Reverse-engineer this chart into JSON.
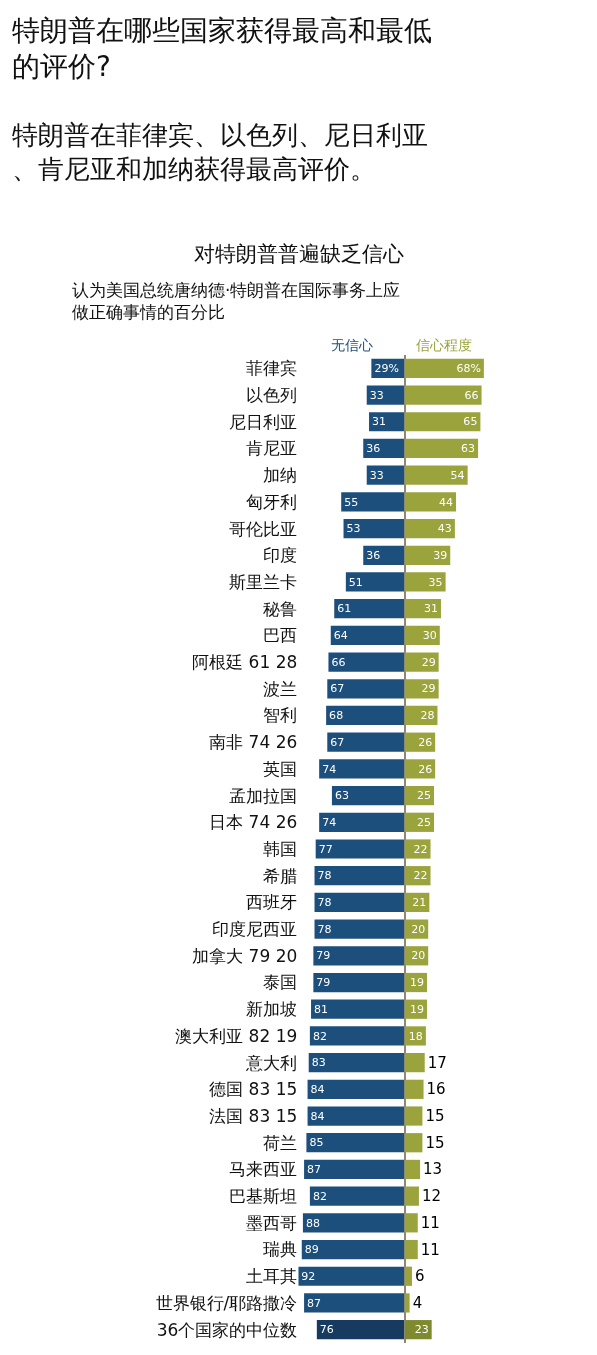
{
  "chart_data": [
    {
      "type": "bar",
      "orientation": "horizontal",
      "title": "特朗普在哪些国家获得最高和最低的评价?",
      "subtitle": "特朗普在菲律宾、以色列、尼日利亚、肯尼亚和加纳获得最高评价。",
      "annotations": [
        "对特朗普普遍缺乏信心",
        "认为美国总统唐纳德·特朗普在国际事务上应做正确事情的百分比"
      ],
      "categories": [
        "菲律宾",
        "以色列",
        "尼日利亚",
        "肯尼亚",
        "加纳",
        "匈牙利",
        "哥伦比亚",
        "印度",
        "斯里兰卡",
        "秘鲁",
        "巴西",
        "阿根廷 61 28",
        "波兰",
        "智利",
        "南非 74 26",
        "英国",
        "孟加拉国",
        "日本 74 26",
        "韩国",
        "希腊",
        "西班牙",
        "印度尼西亚",
        "加拿大 79 20",
        "泰国",
        "新加坡",
        "澳大利亚 82 19",
        "意大利",
        "德国 83 15",
        "法国 83 15",
        "荷兰",
        "马来西亚",
        "巴基斯坦",
        "墨西哥",
        "瑞典",
        "土耳其",
        "世界银行/耶路撒冷",
        "36个国家的中位数"
      ],
      "series": [
        {
          "name": "无信心",
          "color": "#1d4f7d",
          "colors": [
            "#1d4f7d",
            "#1d4f7d",
            "#1d4f7d",
            "#1d4f7d",
            "#1d4f7d",
            "#1d4f7d",
            "#1d4f7d",
            "#1d4f7d",
            "#1d4f7d",
            "#1d4f7d",
            "#1d4f7d",
            "#1d4f7d",
            "#1d4f7d",
            "#1d4f7d",
            "#1d4f7d",
            "#1d4f7d",
            "#1d4f7d",
            "#1d4f7d",
            "#1d4f7d",
            "#1d4f7d",
            "#1d4f7d",
            "#1d4f7d",
            "#1d4f7d",
            "#1d4f7d",
            "#1d4f7d",
            "#1d4f7d",
            "#1d4f7d",
            "#1d4f7d",
            "#1d4f7d",
            "#1d4f7d",
            "#1d4f7d",
            "#1d4f7d",
            "#1d4f7d",
            "#1d4f7d",
            "#1d4f7d",
            "#1d4f7d",
            "#163a60"
          ],
          "values": [
            29,
            33,
            31,
            36,
            33,
            55,
            53,
            36,
            51,
            61,
            64,
            66,
            67,
            68,
            67,
            74,
            63,
            74,
            77,
            78,
            78,
            78,
            79,
            79,
            81,
            82,
            83,
            84,
            84,
            85,
            87,
            82,
            88,
            89,
            92,
            87,
            76
          ],
          "value_labels": [
            "29%",
            "33",
            "31",
            "36",
            "33",
            "55",
            "53",
            "36",
            "51",
            "61",
            "64",
            "66",
            "67",
            "68",
            "67",
            "74",
            "63",
            "74",
            "77",
            "78",
            "78",
            "78",
            "79",
            "79",
            "81",
            "82",
            "83",
            "84",
            "84",
            "85",
            "87",
            "82",
            "88",
            "89",
            "92",
            "87",
            "76"
          ]
        }
      ],
      "xlim": [
        92,
        0
      ],
      "tick_labels": "y"
    },
    {
      "type": "bar",
      "orientation": "horizontal",
      "series": [
        {
          "name": "信心程度",
          "color": "#9aa33c",
          "colors": [
            "#9aa33c",
            "#9aa33c",
            "#9aa33c",
            "#9aa33c",
            "#9aa33c",
            "#9aa33c",
            "#9aa33c",
            "#9aa33c",
            "#9aa33c",
            "#9aa33c",
            "#9aa33c",
            "#9aa33c",
            "#9aa33c",
            "#9aa33c",
            "#9aa33c",
            "#9aa33c",
            "#9aa33c",
            "#9aa33c",
            "#9aa33c",
            "#9aa33c",
            "#9aa33c",
            "#9aa33c",
            "#9aa33c",
            "#9aa33c",
            "#9aa33c",
            "#9aa33c",
            "#9aa33c",
            "#9aa33c",
            "#9aa33c",
            "#9aa33c",
            "#9aa33c",
            "#9aa33c",
            "#9aa33c",
            "#9aa33c",
            "#9aa33c",
            "#9aa33c",
            "#7f8a2e"
          ],
          "values": [
            68,
            66,
            65,
            63,
            54,
            44,
            43,
            39,
            35,
            31,
            30,
            29,
            29,
            28,
            26,
            26,
            25,
            25,
            22,
            22,
            21,
            20,
            20,
            19,
            19,
            18,
            17,
            16,
            15,
            15,
            13,
            12,
            11,
            11,
            6,
            4,
            23
          ],
          "value_labels": [
            "68%",
            "66",
            "65",
            "63",
            "54",
            "44",
            "43",
            "39",
            "35",
            "31",
            "30",
            "29",
            "29",
            "28",
            "26",
            "26",
            "25",
            "25",
            "22",
            "22",
            "21",
            "20",
            "20",
            "19",
            "19",
            "18",
            "17",
            "16",
            "15",
            "15",
            "13",
            "12",
            "11",
            "11",
            "6",
            "4",
            "23"
          ]
        }
      ],
      "xlim": [
        0,
        68
      ],
      "tick_labels": false
    }
  ]
}
